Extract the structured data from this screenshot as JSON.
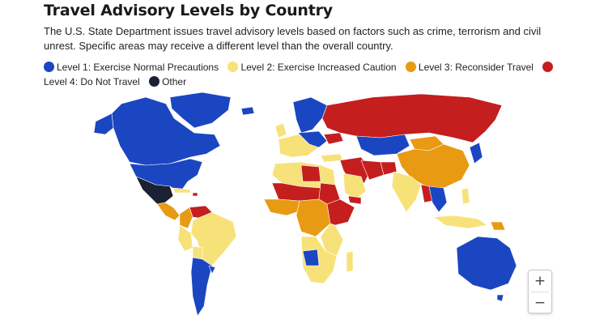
{
  "title": "Travel Advisory Levels by Country",
  "subtitle": "The U.S. State Department issues travel advisory levels based on factors such as crime, terrorism and civil unrest. Specific areas may receive a different level than the overall country.",
  "legend": [
    {
      "label": "Level 1: Exercise Normal Precautions",
      "color": "#1b46c2"
    },
    {
      "label": "Level 2: Exercise Increased Caution",
      "color": "#f7e27a"
    },
    {
      "label": "Level 3: Reconsider Travel",
      "color": "#e89a12"
    },
    {
      "label": "Level 4: Do Not Travel",
      "color": "#c41e1e"
    },
    {
      "label": "Other",
      "color": "#1c2033"
    }
  ],
  "zoom": {
    "in_label": "+",
    "out_label": "−"
  }
}
